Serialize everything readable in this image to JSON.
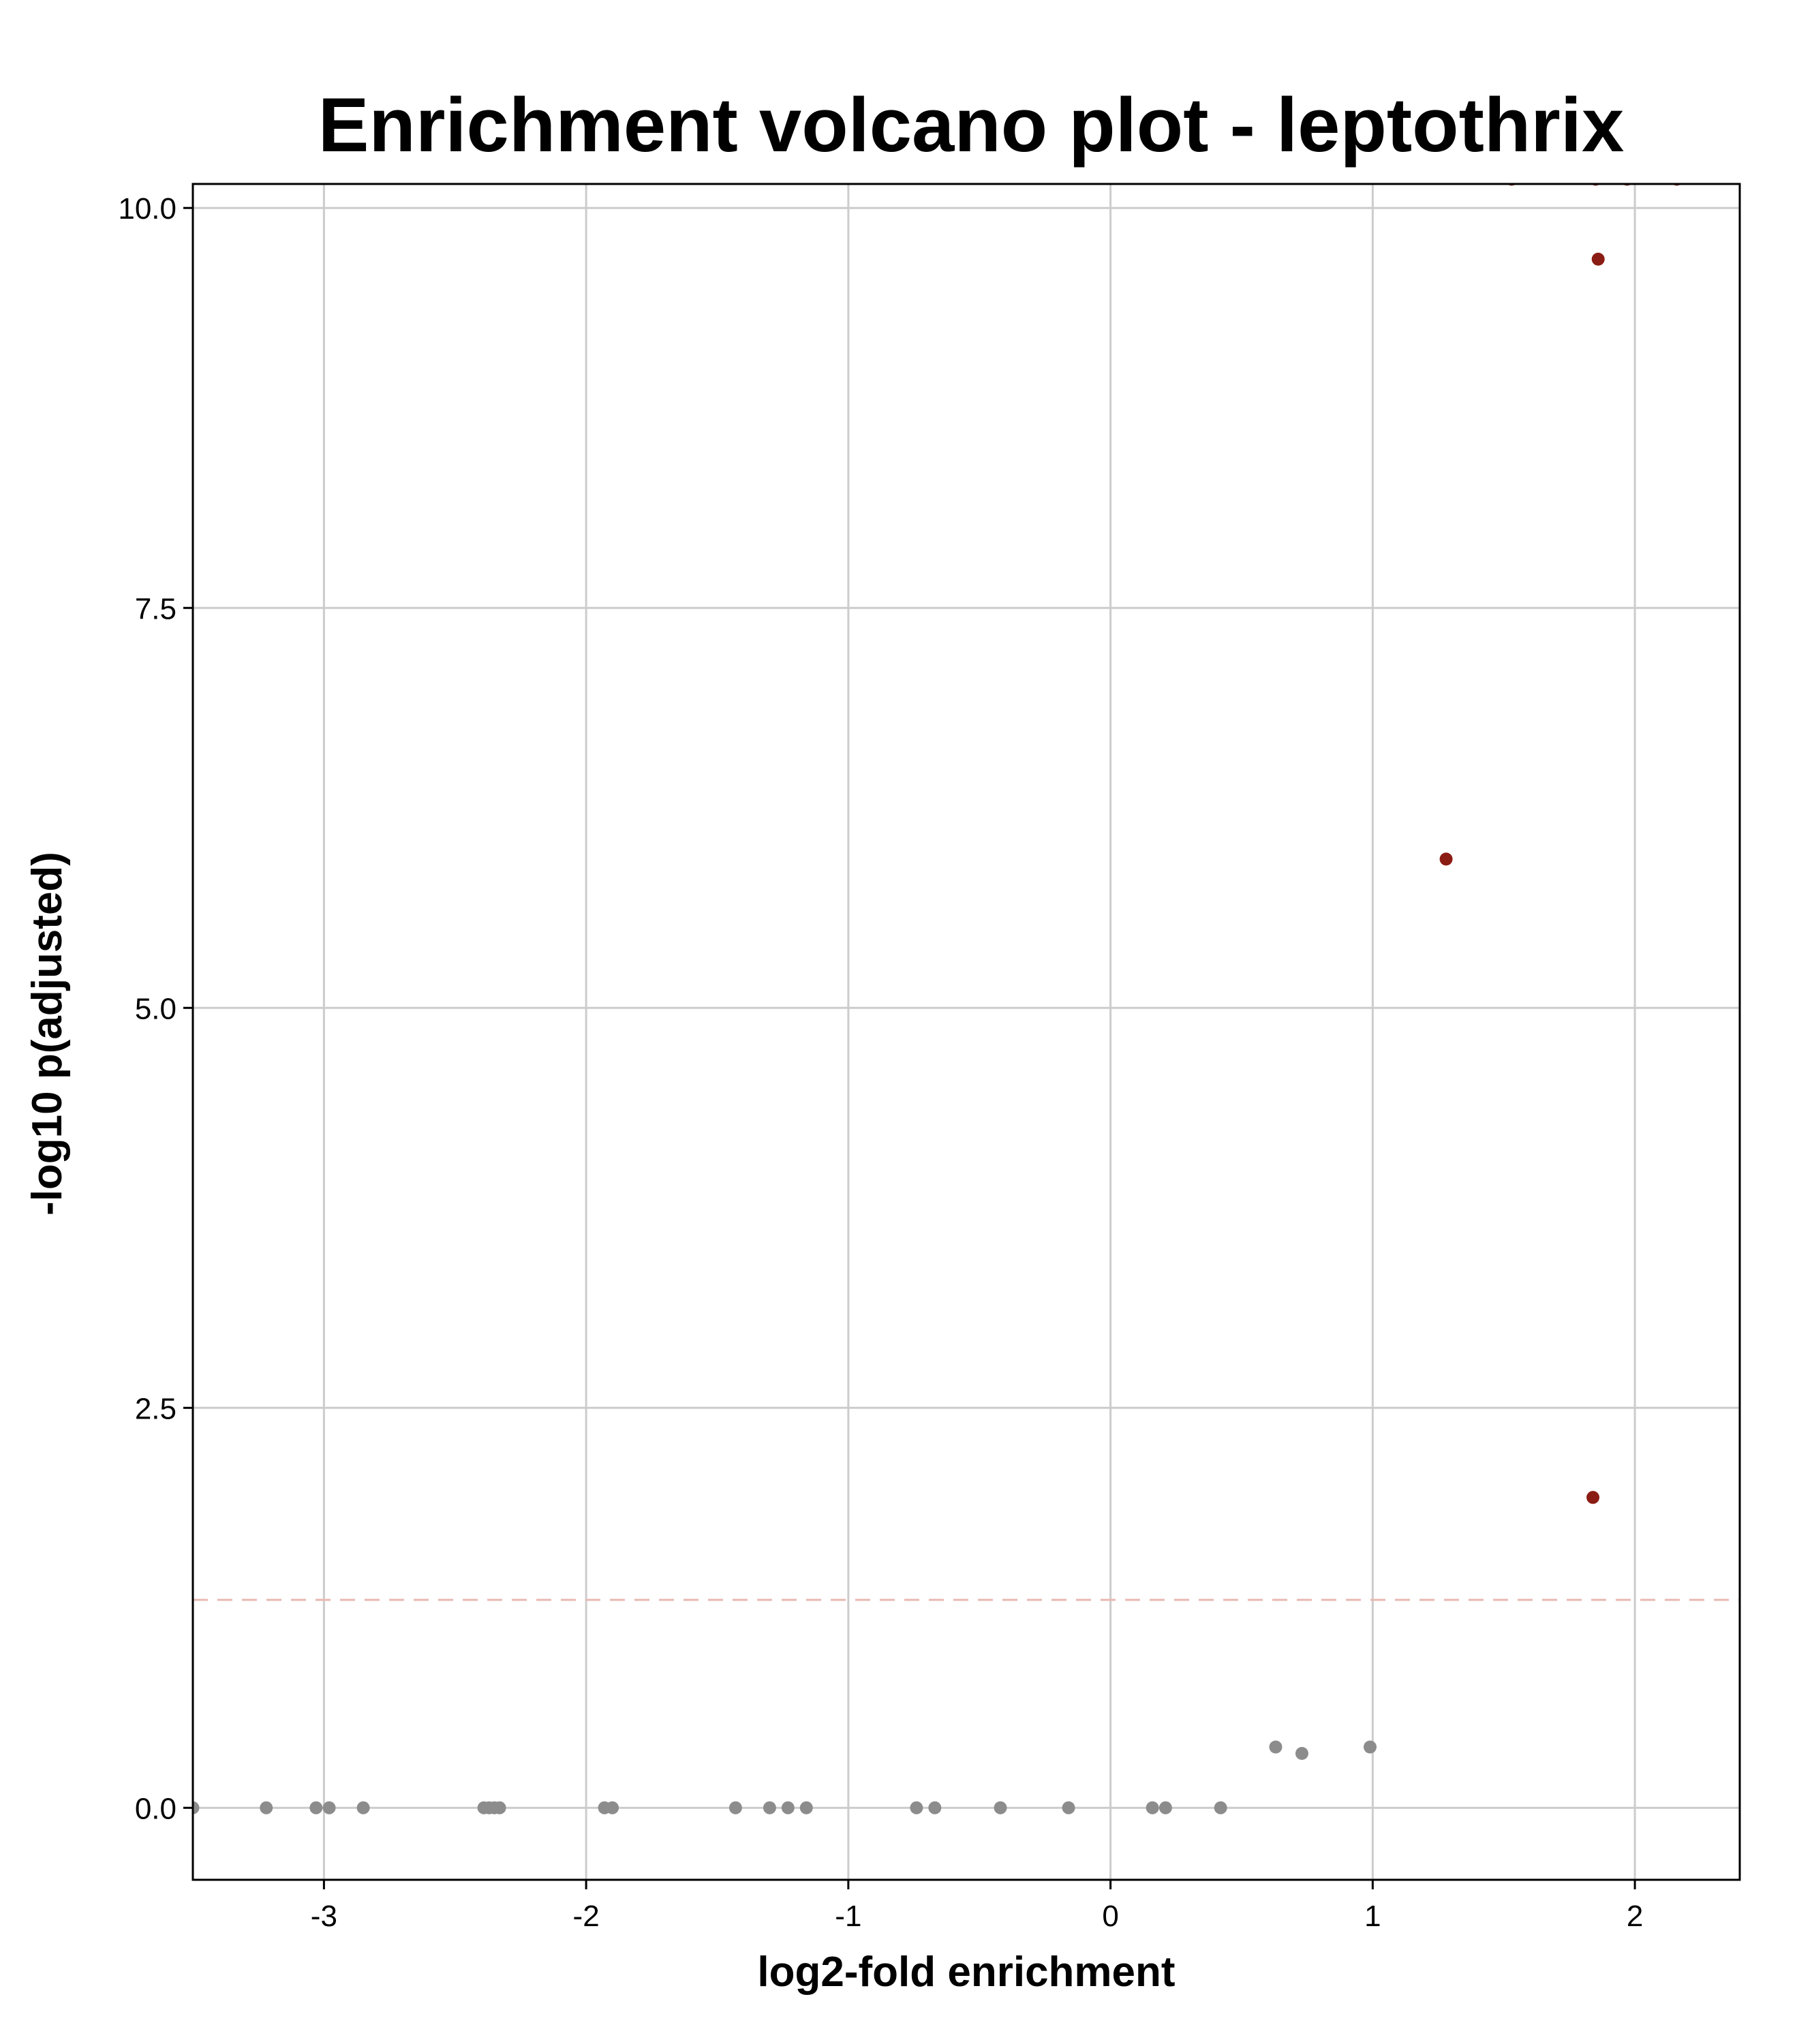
{
  "chart_data": {
    "type": "scatter",
    "title": "Enrichment volcano plot -  leptothrix",
    "xlabel": "log2-fold enrichment",
    "ylabel": "-log10 p(adjusted)",
    "xlim": [
      -3.5,
      2.4
    ],
    "ylim": [
      -0.45,
      10.15
    ],
    "x_ticks": [
      -3,
      -2,
      -1,
      0,
      1,
      2
    ],
    "x_tick_labels": [
      "-3",
      "-2",
      "-1",
      "0",
      "1",
      "2"
    ],
    "y_ticks": [
      0,
      2.5,
      5,
      7.5,
      10
    ],
    "y_tick_labels": [
      "0.0",
      "2.5",
      "5.0",
      "7.5",
      "10.0"
    ],
    "grid": true,
    "significance_line": {
      "y": 1.3,
      "style": "dashed",
      "color": "#e8b9b3"
    },
    "colors": {
      "significant": "#8b1c13",
      "not_significant": "#8c8c8c",
      "grid": "#cccccc"
    },
    "series": [
      {
        "group": "significant",
        "x": [
          1.53,
          1.85,
          1.97,
          2.16,
          1.86,
          1.28,
          1.84
        ],
        "y": [
          10.18,
          10.18,
          10.18,
          10.18,
          9.68,
          5.93,
          1.94
        ]
      },
      {
        "group": "not_significant",
        "x": [
          -3.5,
          -3.22,
          -3.03,
          -2.98,
          -2.85,
          -2.39,
          -2.37,
          -2.35,
          -2.33,
          -1.93,
          -1.9,
          -1.43,
          -1.3,
          -1.23,
          -1.16,
          -0.74,
          -0.67,
          -0.42,
          -0.16,
          0.16,
          0.21,
          0.42,
          0.63,
          0.73,
          0.99
        ],
        "y": [
          0,
          0,
          0,
          0,
          0,
          0,
          0,
          0,
          0,
          0,
          0,
          0,
          0,
          0,
          0,
          0,
          0,
          0,
          0,
          0,
          0,
          0,
          0.38,
          0.34,
          0.38
        ]
      }
    ]
  }
}
